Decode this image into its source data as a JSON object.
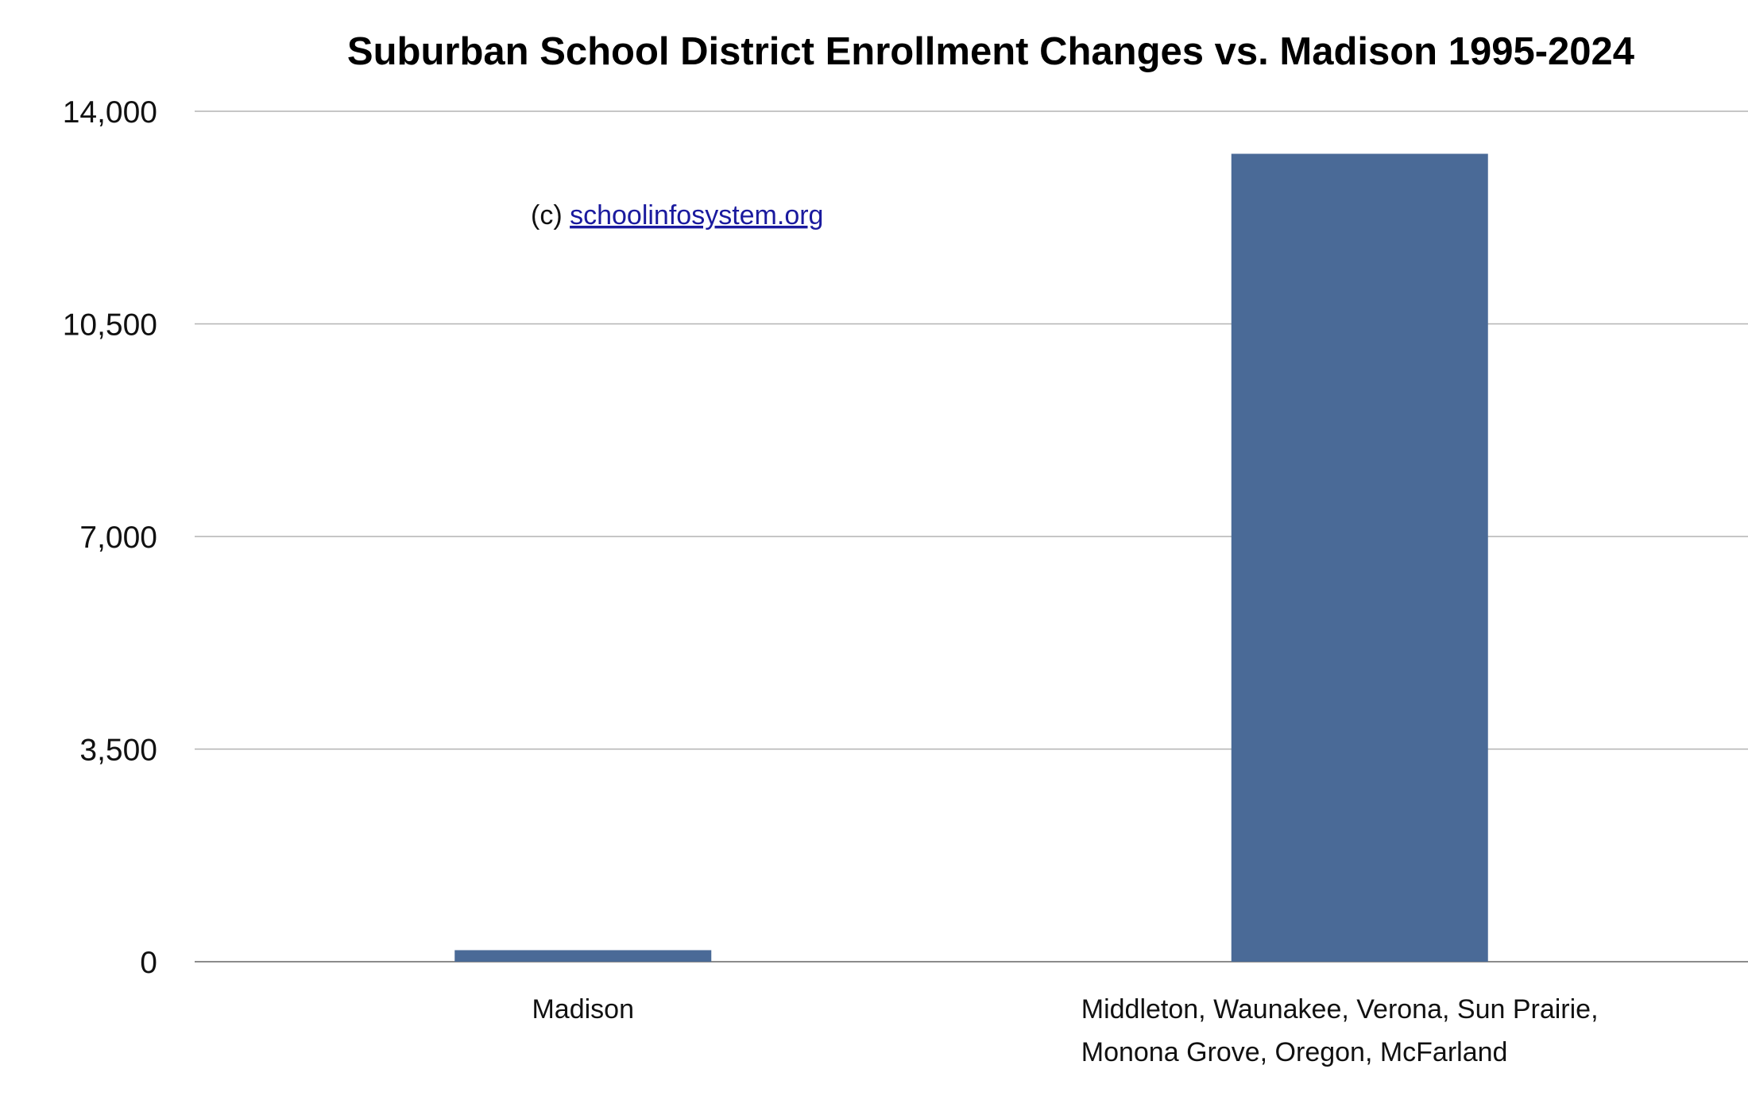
{
  "chart_data": {
    "type": "bar",
    "title": "Suburban School District Enrollment Changes vs. Madison 1995-2024",
    "xlabel": "",
    "ylabel": "",
    "categories": [
      [
        "Madison"
      ],
      [
        "Middleton, Waunakee, Verona, Sun Prairie,",
        "Monona Grove, Oregon, McFarland"
      ]
    ],
    "values": [
      190,
      13300
    ],
    "ylim": [
      0,
      14000
    ],
    "yticks": [
      0,
      3500,
      7000,
      10500,
      14000
    ],
    "ytick_labels": [
      "0",
      "3,500",
      "7,000",
      "10,500",
      "14,000"
    ],
    "grid": true,
    "legend": "none",
    "bar_color": "#4a6a97",
    "grid_color": "#b3b3b3",
    "annotation": {
      "prefix": "(c) ",
      "link_text": "schoolinfosystem.org"
    }
  }
}
